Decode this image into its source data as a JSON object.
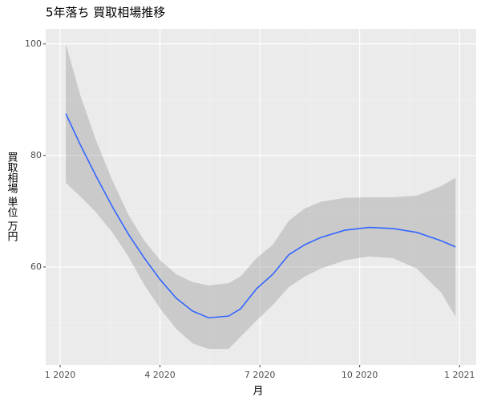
{
  "chart_data": {
    "type": "line",
    "title": "5年落ち 買取相場推移",
    "xlabel": "月",
    "ylabel": "買取相場 単位 万円",
    "x": [
      1.17,
      1.6,
      2.08,
      2.57,
      3.05,
      3.53,
      4.01,
      4.49,
      4.98,
      5.46,
      6.06,
      6.42,
      6.9,
      7.39,
      7.87,
      8.35,
      8.83,
      9.55,
      10.28,
      11.0,
      11.72,
      12.45,
      12.88
    ],
    "series": [
      {
        "color": "#3366ff",
        "values": [
          87.5,
          82.0,
          76.3,
          70.8,
          65.9,
          61.6,
          57.7,
          54.4,
          52.1,
          50.9,
          51.2,
          52.5,
          56.1,
          58.7,
          62.2,
          64.0,
          65.3,
          66.6,
          67.1,
          66.9,
          66.2,
          64.7,
          63.6
        ]
      }
    ],
    "band": {
      "color": "#999999",
      "upper": [
        100,
        90.9,
        82.7,
        75.5,
        69.4,
        64.7,
        61.2,
        58.7,
        57.3,
        56.7,
        57.1,
        58.3,
        61.6,
        64.0,
        68.3,
        70.5,
        71.7,
        72.4,
        72.5,
        72.5,
        72.8,
        74.5,
        76.0
      ],
      "lower": [
        75.1,
        72.7,
        69.8,
        66.2,
        61.9,
        56.8,
        52.5,
        48.9,
        46.3,
        45.3,
        45.3,
        47.5,
        50.4,
        53.2,
        56.4,
        58.3,
        59.7,
        61.2,
        61.9,
        61.6,
        59.7,
        55.4,
        51.1
      ]
    },
    "xlim": [
      0.566,
      13.5
    ],
    "ylim": [
      42.45,
      102.7
    ],
    "xticks": [
      {
        "value": 1,
        "label": "1 2020"
      },
      {
        "value": 4,
        "label": "4 2020"
      },
      {
        "value": 7,
        "label": "7 2020"
      },
      {
        "value": 10,
        "label": "10 2020"
      },
      {
        "value": 13,
        "label": "1 2021"
      }
    ],
    "yticks": [
      60,
      80,
      100
    ],
    "xminor": [
      2.5,
      5.5,
      8.5,
      11.5
    ],
    "yminor": [
      50,
      70,
      90
    ],
    "grid": true
  }
}
